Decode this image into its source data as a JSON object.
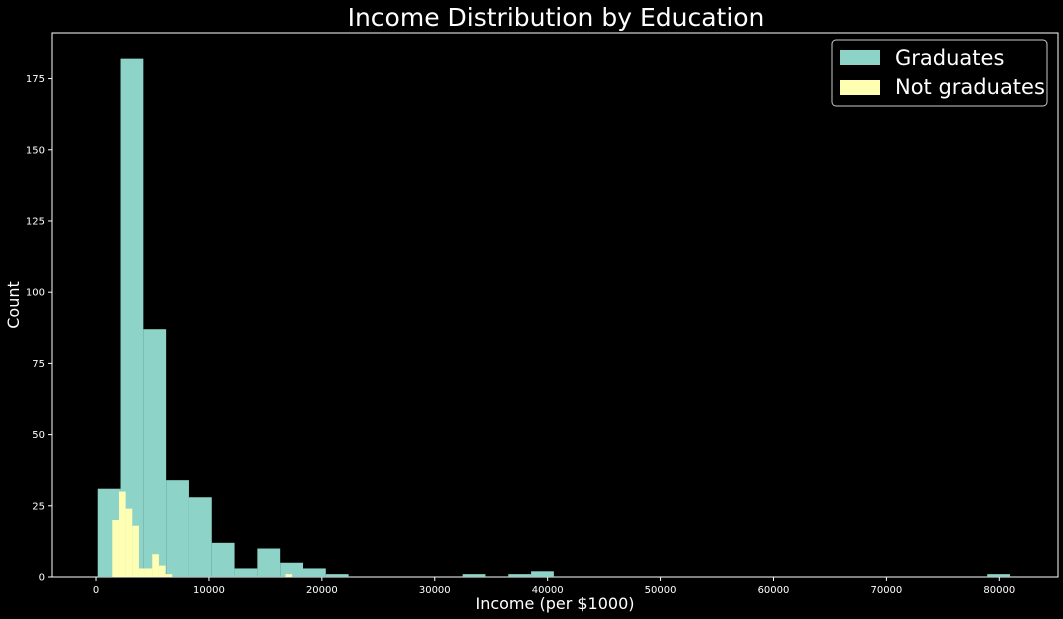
{
  "chart_data": {
    "type": "bar",
    "title": "Income Distribution by Education",
    "xlabel": "Income (per $1000)",
    "ylabel": "Count",
    "xlim": [
      -3900,
      85200
    ],
    "ylim": [
      0,
      191
    ],
    "xticks": [
      0,
      10000,
      20000,
      30000,
      40000,
      50000,
      60000,
      70000,
      80000
    ],
    "yticks": [
      0,
      25,
      50,
      75,
      100,
      125,
      150,
      175
    ],
    "grid": false,
    "legend_position": "top-right",
    "background": "#000000",
    "series": [
      {
        "name": "Graduates",
        "color": "#8dd3c7",
        "bin_width": 2020,
        "bin_starts": [
          150,
          2170,
          4190,
          6210,
          8230,
          10250,
          12270,
          14290,
          16310,
          18330,
          20350,
          22370,
          32470,
          34490,
          36510,
          38530,
          78930
        ],
        "counts": [
          31,
          182,
          87,
          34,
          28,
          12,
          3,
          10,
          5,
          3,
          1,
          0,
          1,
          0,
          1,
          2,
          1
        ]
      },
      {
        "name": "Not graduates",
        "color": "#ffffb3",
        "bin_width": 590,
        "bin_starts": [
          1440,
          2030,
          2620,
          3210,
          3800,
          4390,
          4980,
          5570,
          6160,
          6750,
          16780
        ],
        "counts": [
          20,
          30,
          24,
          18,
          3,
          3,
          8,
          4,
          1,
          0,
          1
        ]
      }
    ]
  }
}
